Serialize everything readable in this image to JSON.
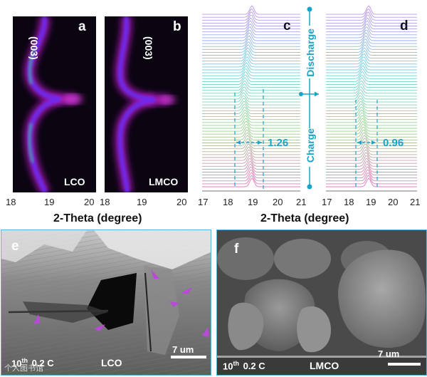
{
  "panels": {
    "a": {
      "label": "a",
      "peak": "(003)",
      "sample": "LCO"
    },
    "b": {
      "label": "b",
      "peak": "(003)",
      "sample": "LMCO"
    },
    "c": {
      "label": "c",
      "width_label": "1.26"
    },
    "d": {
      "label": "d",
      "width_label": "0.96"
    },
    "e": {
      "label": "e",
      "cycle": "10",
      "cycle_sup": "th",
      "rate": "0.2 C",
      "sample": "LCO",
      "scale": "7 um"
    },
    "f": {
      "label": "f",
      "cycle": "10",
      "cycle_sup": "th",
      "rate": "0.2 C",
      "sample": "LMCO",
      "scale": "7 um"
    }
  },
  "axes": {
    "ab": {
      "ticks": [
        "18",
        "19",
        "20",
        "18",
        "19",
        "20"
      ],
      "title": "2-Theta (degree)"
    },
    "cd": {
      "ticks": [
        "17",
        "18",
        "19",
        "20",
        "21",
        "17",
        "18",
        "19",
        "20",
        "21"
      ],
      "title": "2-Theta (degree)"
    }
  },
  "legend": {
    "discharge": "Discharge",
    "charge": "Charge"
  },
  "watermark": "个人图书馆",
  "colors": {
    "accent": "#1aa3c8",
    "heatmap_bg": "#0a0510",
    "sem_border": "#59b8d6"
  },
  "chart_data": [
    {
      "type": "heatmap",
      "title": "",
      "xlabel": "2-Theta (degree)",
      "xlim": [
        18,
        20
      ],
      "series": [
        {
          "name": "LCO",
          "peak": "(003)"
        },
        {
          "name": "LMCO",
          "peak": "(003)"
        }
      ]
    },
    {
      "type": "line",
      "title": "",
      "xlabel": "2-Theta (degree)",
      "xlim": [
        17,
        21
      ],
      "annotations": [
        {
          "panel": "c",
          "text": "1.26",
          "x_range": [
            18.3,
            19.55
          ]
        },
        {
          "panel": "d",
          "text": "0.96",
          "x_range": [
            18.45,
            19.4
          ]
        }
      ]
    }
  ]
}
